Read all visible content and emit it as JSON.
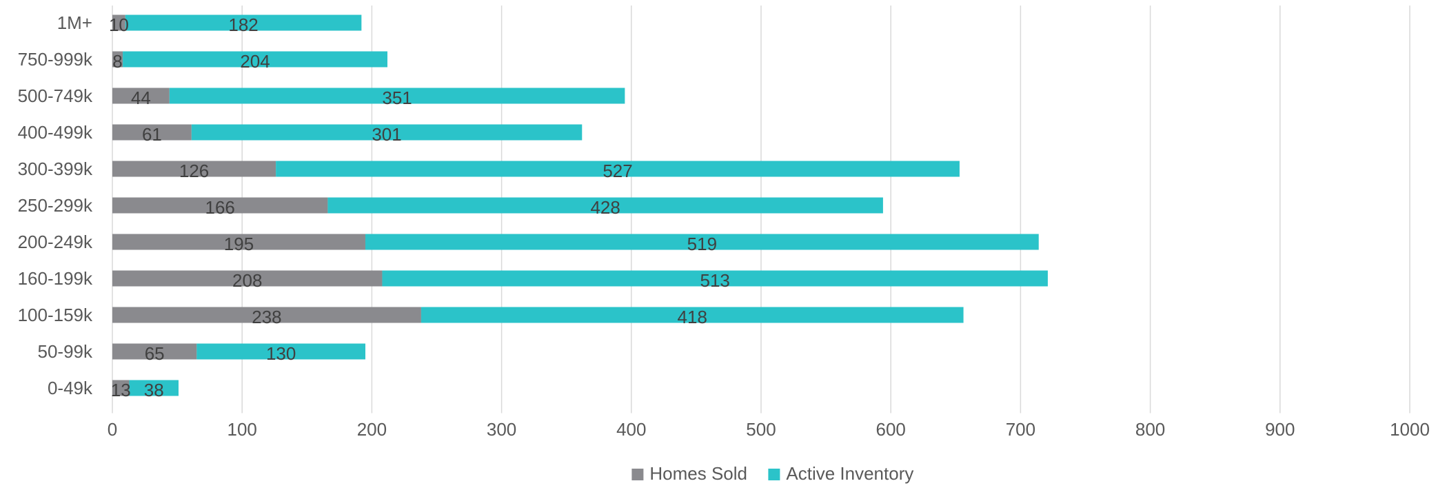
{
  "chart_data": {
    "type": "bar",
    "orientation": "horizontal",
    "stacked": true,
    "categories": [
      "1M+",
      "750-999k",
      "500-749k",
      "400-499k",
      "300-399k",
      "250-299k",
      "200-249k",
      "160-199k",
      "100-159k",
      "50-99k",
      "0-49k"
    ],
    "series": [
      {
        "name": "Homes Sold",
        "color": "#8a8a8e",
        "values": [
          10,
          8,
          44,
          61,
          126,
          166,
          195,
          208,
          238,
          65,
          13
        ]
      },
      {
        "name": "Active Inventory",
        "color": "#2bc3c9",
        "values": [
          182,
          204,
          351,
          301,
          527,
          428,
          519,
          513,
          418,
          130,
          38
        ]
      }
    ],
    "xlim": [
      0,
      1000
    ],
    "xticks": [
      0,
      100,
      200,
      300,
      400,
      500,
      600,
      700,
      800,
      900,
      1000
    ],
    "grid": "vertical",
    "legend_position": "bottom",
    "title": "",
    "xlabel": "",
    "ylabel": ""
  }
}
